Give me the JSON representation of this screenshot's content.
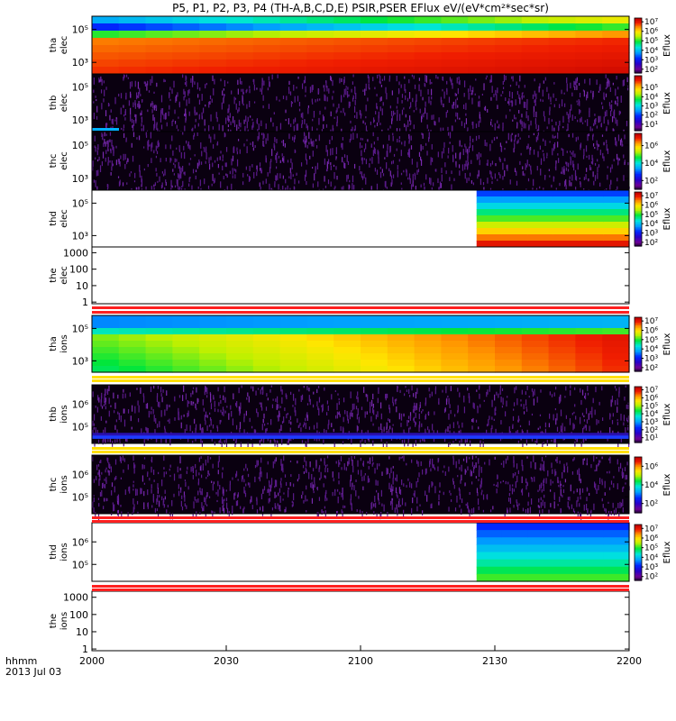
{
  "chart_data": {
    "type": "heatmap",
    "title": "P5, P1, P2, P3, P4 (TH-A,B,C,D,E) PSIR,PSER EFlux eV/(eV*cm²*sec*sr)",
    "x_axis": {
      "ticks": [
        "2000",
        "2030",
        "2100",
        "2130",
        "2200"
      ],
      "corner_labels": [
        "hhmm",
        "2013 Jul 03"
      ]
    },
    "colorbar_label": "Eflux",
    "panels": [
      {
        "id": "tha-elec",
        "probe": "tha",
        "species": "elec",
        "yticks": [
          {
            "v": 5,
            "label": "10⁵"
          },
          {
            "v": 3,
            "label": "10³"
          }
        ],
        "cbticks": [
          {
            "v": 7,
            "label": "10⁷"
          },
          {
            "v": 6,
            "label": "10⁶"
          },
          {
            "v": 5,
            "label": "10⁵"
          },
          {
            "v": 4,
            "label": "10⁴"
          },
          {
            "v": 3,
            "label": "10³"
          },
          {
            "v": 2,
            "label": "10²"
          }
        ],
        "cbrange": [
          1.6,
          7.4
        ],
        "pattern": "tha_elec"
      },
      {
        "id": "thb-elec",
        "probe": "thb",
        "species": "elec",
        "yticks": [
          {
            "v": 5,
            "label": "10⁵"
          },
          {
            "v": 3,
            "label": "10³"
          }
        ],
        "cbticks": [
          {
            "v": 5,
            "label": "10⁵"
          },
          {
            "v": 4,
            "label": "10⁴"
          },
          {
            "v": 3,
            "label": "10³"
          },
          {
            "v": 2,
            "label": "10²"
          },
          {
            "v": 1,
            "label": "10¹"
          }
        ],
        "cbrange": [
          0.3,
          6.3
        ],
        "pattern": "noise_elec"
      },
      {
        "id": "thc-elec",
        "probe": "thc",
        "species": "elec",
        "yticks": [
          {
            "v": 5,
            "label": "10⁵"
          },
          {
            "v": 3,
            "label": "10³"
          }
        ],
        "cbticks": [
          {
            "v": 6,
            "label": "10⁶"
          },
          {
            "v": 4,
            "label": "10⁴"
          },
          {
            "v": 2,
            "label": "10²"
          }
        ],
        "cbrange": [
          1.0,
          7.4
        ],
        "pattern": "noise_elec"
      },
      {
        "id": "thd-elec",
        "probe": "thd",
        "species": "elec",
        "yticks": [
          {
            "v": 5,
            "label": "10⁵"
          },
          {
            "v": 3,
            "label": "10³"
          }
        ],
        "cbticks": [
          {
            "v": 7,
            "label": "10⁷"
          },
          {
            "v": 6,
            "label": "10⁶"
          },
          {
            "v": 5,
            "label": "10⁵"
          },
          {
            "v": 4,
            "label": "10⁴"
          },
          {
            "v": 3,
            "label": "10³"
          },
          {
            "v": 2,
            "label": "10²"
          }
        ],
        "cbrange": [
          1.6,
          7.4
        ],
        "pattern": "thd_elec",
        "data_start": "2128"
      },
      {
        "id": "the-elec",
        "probe": "the",
        "species": "elec",
        "yticks": [
          {
            "v": 3,
            "label": "1000"
          },
          {
            "v": 2,
            "label": "100"
          },
          {
            "v": 1,
            "label": "10"
          },
          {
            "v": 0,
            "label": "1"
          }
        ],
        "cbticks": [],
        "pattern": "empty"
      },
      {
        "id": "tha-ions",
        "probe": "tha",
        "species": "ions",
        "yticks": [
          {
            "v": 5,
            "label": "10⁵"
          },
          {
            "v": 3,
            "label": "10³"
          }
        ],
        "cbticks": [
          {
            "v": 7,
            "label": "10⁷"
          },
          {
            "v": 6,
            "label": "10⁶"
          },
          {
            "v": 5,
            "label": "10⁵"
          },
          {
            "v": 4,
            "label": "10⁴"
          },
          {
            "v": 3,
            "label": "10³"
          },
          {
            "v": 2,
            "label": "10²"
          }
        ],
        "cbrange": [
          1.6,
          7.4
        ],
        "pattern": "tha_ions"
      },
      {
        "id": "thb-ions",
        "probe": "thb",
        "species": "ions",
        "yticks": [
          {
            "v": 6,
            "label": "10⁶"
          },
          {
            "v": 5,
            "label": "10⁵"
          }
        ],
        "cbticks": [
          {
            "v": 7,
            "label": "10⁷"
          },
          {
            "v": 6,
            "label": "10⁶"
          },
          {
            "v": 5,
            "label": "10⁵"
          },
          {
            "v": 4,
            "label": "10⁴"
          },
          {
            "v": 3,
            "label": "10³"
          },
          {
            "v": 2,
            "label": "10²"
          },
          {
            "v": 1,
            "label": "10¹"
          }
        ],
        "cbrange": [
          0.4,
          7.4
        ],
        "pattern": "noise_ions"
      },
      {
        "id": "thc-ions",
        "probe": "thc",
        "species": "ions",
        "yticks": [
          {
            "v": 6,
            "label": "10⁶"
          },
          {
            "v": 5,
            "label": "10⁵"
          }
        ],
        "cbticks": [
          {
            "v": 6,
            "label": "10⁶"
          },
          {
            "v": 4,
            "label": "10⁴"
          },
          {
            "v": 2,
            "label": "10²"
          }
        ],
        "cbrange": [
          1.0,
          7.0
        ],
        "pattern": "noise_ions_c"
      },
      {
        "id": "thd-ions",
        "probe": "thd",
        "species": "ions",
        "yticks": [
          {
            "v": 6,
            "label": "10⁶"
          },
          {
            "v": 5,
            "label": "10⁵"
          }
        ],
        "cbticks": [
          {
            "v": 7,
            "label": "10⁷"
          },
          {
            "v": 6,
            "label": "10⁶"
          },
          {
            "v": 5,
            "label": "10⁵"
          },
          {
            "v": 4,
            "label": "10⁴"
          },
          {
            "v": 3,
            "label": "10³"
          },
          {
            "v": 2,
            "label": "10²"
          }
        ],
        "cbrange": [
          1.6,
          7.4
        ],
        "pattern": "thd_ions",
        "data_start": "2128"
      },
      {
        "id": "the-ions",
        "probe": "the",
        "species": "ions",
        "yticks": [
          {
            "v": 3,
            "label": "1000"
          },
          {
            "v": 2,
            "label": "100"
          },
          {
            "v": 1,
            "label": "10"
          },
          {
            "v": 0,
            "label": "1"
          }
        ],
        "cbticks": [],
        "pattern": "empty"
      }
    ],
    "grid": false
  }
}
